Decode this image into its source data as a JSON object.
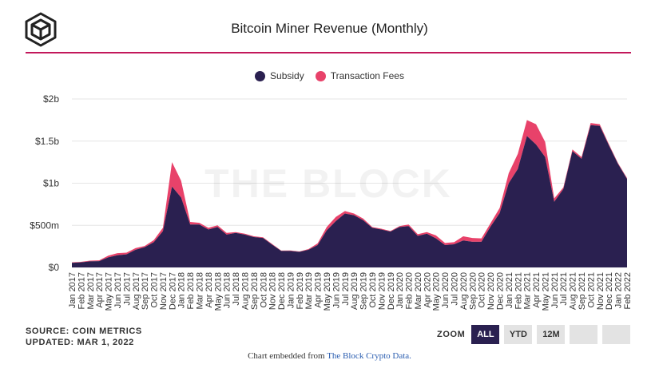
{
  "header": {
    "title": "Bitcoin Miner Revenue (Monthly)"
  },
  "colors": {
    "subsidy": "#2a2050",
    "fees": "#e8426a",
    "accent": "#c2185b"
  },
  "chart_data": {
    "type": "area",
    "stacked": true,
    "title": "Bitcoin Miner Revenue (Monthly)",
    "watermark": "THE BLOCK",
    "xlabel": "",
    "ylabel": "",
    "ylim": [
      0,
      2000000000
    ],
    "yticks": [
      0,
      500000000,
      1000000000,
      1500000000,
      2000000000
    ],
    "ytick_labels": [
      "$0",
      "$500m",
      "$1b",
      "$1.5b",
      "$2b"
    ],
    "legend": [
      "Subsidy",
      "Transaction Fees"
    ],
    "legend_position": "top-center",
    "categories": [
      "Jan 2017",
      "Feb 2017",
      "Mar 2017",
      "Apr 2017",
      "May 2017",
      "Jun 2017",
      "Jul 2017",
      "Aug 2017",
      "Sep 2017",
      "Oct 2017",
      "Nov 2017",
      "Dec 2017",
      "Jan 2018",
      "Feb 2018",
      "Mar 2018",
      "Apr 2018",
      "May 2018",
      "Jun 2018",
      "Jul 2018",
      "Aug 2018",
      "Sep 2018",
      "Oct 2018",
      "Nov 2018",
      "Dec 2018",
      "Jan 2019",
      "Feb 2019",
      "Mar 2019",
      "Apr 2019",
      "May 2019",
      "Jun 2019",
      "Jul 2019",
      "Aug 2019",
      "Sep 2019",
      "Oct 2019",
      "Nov 2019",
      "Dec 2019",
      "Jan 2020",
      "Feb 2020",
      "Mar 2020",
      "Apr 2020",
      "May 2020",
      "Jun 2020",
      "Jul 2020",
      "Aug 2020",
      "Sep 2020",
      "Oct 2020",
      "Nov 2020",
      "Dec 2020",
      "Jan 2021",
      "Feb 2021",
      "Mar 2021",
      "Apr 2021",
      "May 2021",
      "Jun 2021",
      "Jul 2021",
      "Aug 2021",
      "Sep 2021",
      "Oct 2021",
      "Nov 2021",
      "Dec 2021",
      "Jan 2022",
      "Feb 2022"
    ],
    "series": [
      {
        "name": "Subsidy",
        "values": [
          55000000,
          60000000,
          72000000,
          75000000,
          120000000,
          145000000,
          155000000,
          210000000,
          240000000,
          300000000,
          430000000,
          960000000,
          830000000,
          510000000,
          510000000,
          450000000,
          480000000,
          390000000,
          410000000,
          390000000,
          360000000,
          350000000,
          270000000,
          195000000,
          195000000,
          185000000,
          210000000,
          265000000,
          440000000,
          550000000,
          640000000,
          620000000,
          560000000,
          470000000,
          450000000,
          425000000,
          480000000,
          490000000,
          375000000,
          400000000,
          345000000,
          265000000,
          275000000,
          320000000,
          305000000,
          305000000,
          485000000,
          645000000,
          1000000000,
          1170000000,
          1560000000,
          1460000000,
          1310000000,
          780000000,
          930000000,
          1380000000,
          1290000000,
          1690000000,
          1680000000,
          1450000000,
          1230000000,
          1050000000
        ]
      },
      {
        "name": "Transaction Fees",
        "values": [
          5000000,
          6000000,
          8000000,
          9000000,
          20000000,
          25000000,
          20000000,
          20000000,
          15000000,
          25000000,
          40000000,
          290000000,
          200000000,
          30000000,
          20000000,
          20000000,
          20000000,
          20000000,
          10000000,
          10000000,
          10000000,
          8000000,
          8000000,
          5000000,
          6000000,
          5000000,
          8000000,
          20000000,
          40000000,
          50000000,
          30000000,
          20000000,
          20000000,
          10000000,
          10000000,
          8000000,
          10000000,
          20000000,
          20000000,
          20000000,
          35000000,
          25000000,
          25000000,
          50000000,
          45000000,
          40000000,
          40000000,
          60000000,
          120000000,
          180000000,
          190000000,
          240000000,
          180000000,
          40000000,
          20000000,
          20000000,
          20000000,
          25000000,
          20000000,
          15000000,
          10000000,
          10000000
        ]
      }
    ]
  },
  "footer": {
    "source": "SOURCE: COIN METRICS",
    "updated": "UPDATED: MAR 1, 2022"
  },
  "zoom": {
    "label": "ZOOM",
    "all": "ALL",
    "ytd": "YTD",
    "m12": "12M"
  },
  "embed": {
    "prefix": "Chart embedded from",
    "link_text": "The Block Crypto Data."
  }
}
